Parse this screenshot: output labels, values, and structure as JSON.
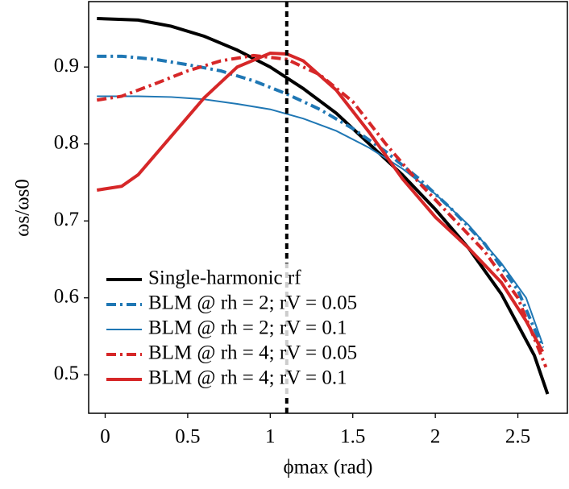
{
  "chart_data": {
    "type": "line",
    "x_label": "ϕmax (rad)",
    "y_label": "ωs/ωs0",
    "xlim": [
      -0.1,
      2.8
    ],
    "ylim": [
      0.45,
      0.985
    ],
    "xticks": [
      0,
      0.5,
      1,
      1.5,
      2,
      2.5
    ],
    "yticks": [
      0.5,
      0.6,
      0.7,
      0.8,
      0.9
    ],
    "grid": false,
    "legend": "lower left",
    "vline": {
      "x": 1.1,
      "color": "#000000",
      "style": "dashed"
    },
    "series": [
      {
        "name": "Single-harmonic rf",
        "color": "#000000",
        "style": "solid",
        "width": 4,
        "x": [
          -0.05,
          0.2,
          0.4,
          0.6,
          0.8,
          1.0,
          1.2,
          1.4,
          1.6,
          1.8,
          2.0,
          2.2,
          2.4,
          2.6,
          2.68
        ],
        "values": [
          0.963,
          0.961,
          0.953,
          0.94,
          0.922,
          0.9,
          0.872,
          0.84,
          0.8,
          0.76,
          0.715,
          0.665,
          0.605,
          0.525,
          0.475
        ]
      },
      {
        "name": "BLM @ rh = 2; rV = 0.05",
        "color": "#1f77b4",
        "style": "dashdot",
        "width": 4,
        "x": [
          -0.05,
          0.1,
          0.3,
          0.5,
          0.7,
          0.9,
          1.1,
          1.3,
          1.5,
          1.7,
          1.9,
          2.1,
          2.3,
          2.5,
          2.65
        ],
        "values": [
          0.914,
          0.914,
          0.91,
          0.903,
          0.895,
          0.882,
          0.865,
          0.845,
          0.82,
          0.79,
          0.755,
          0.715,
          0.67,
          0.61,
          0.535
        ]
      },
      {
        "name": "BLM @ rh = 2; rV = 0.1",
        "color": "#1f77b4",
        "style": "solid",
        "width": 2,
        "x": [
          -0.05,
          0.2,
          0.4,
          0.6,
          0.8,
          1.0,
          1.2,
          1.4,
          1.6,
          1.8,
          2.0,
          2.2,
          2.4,
          2.55,
          2.65
        ],
        "values": [
          0.862,
          0.862,
          0.861,
          0.858,
          0.852,
          0.845,
          0.833,
          0.817,
          0.795,
          0.768,
          0.735,
          0.695,
          0.645,
          0.6,
          0.54
        ]
      },
      {
        "name": "BLM @ rh = 4; rV = 0.05",
        "color": "#d62728",
        "style": "dashdot",
        "width": 4,
        "x": [
          -0.05,
          0.1,
          0.3,
          0.5,
          0.7,
          0.9,
          1.1,
          1.3,
          1.5,
          1.7,
          1.9,
          2.1,
          2.3,
          2.5,
          2.67
        ],
        "values": [
          0.857,
          0.862,
          0.878,
          0.895,
          0.908,
          0.915,
          0.91,
          0.89,
          0.855,
          0.8,
          0.75,
          0.705,
          0.66,
          0.6,
          0.51
        ]
      },
      {
        "name": "BLM @ rh = 4; rV = 0.1",
        "color": "#d62728",
        "style": "solid",
        "width": 4,
        "x": [
          -0.05,
          0.1,
          0.2,
          0.4,
          0.6,
          0.8,
          1.0,
          1.1,
          1.2,
          1.4,
          1.6,
          1.8,
          2.0,
          2.2,
          2.4,
          2.55,
          2.65
        ],
        "values": [
          0.74,
          0.745,
          0.76,
          0.81,
          0.86,
          0.9,
          0.918,
          0.917,
          0.908,
          0.87,
          0.815,
          0.755,
          0.705,
          0.665,
          0.62,
          0.57,
          0.53
        ]
      }
    ]
  }
}
